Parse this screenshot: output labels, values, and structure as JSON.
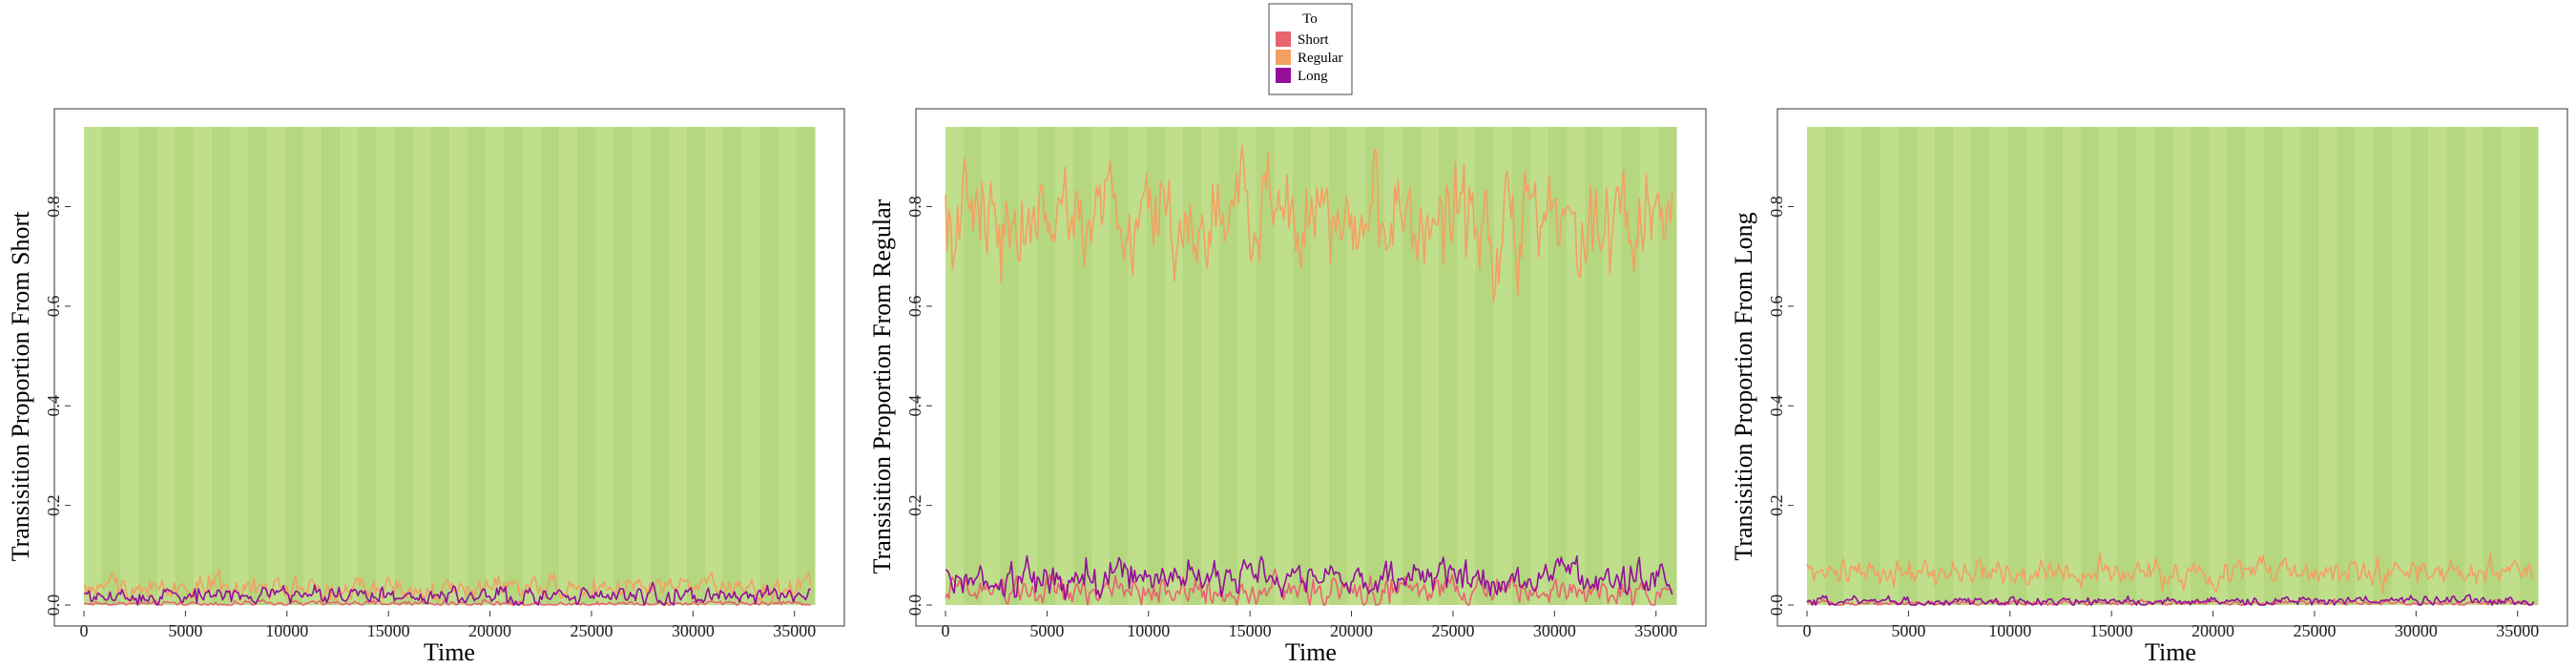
{
  "legend": {
    "title": "To",
    "items": [
      {
        "label": "Short",
        "color": "#E8646F"
      },
      {
        "label": "Regular",
        "color": "#F3A062"
      },
      {
        "label": "Long",
        "color": "#950E9A"
      }
    ]
  },
  "band_colors": [
    "#BFDF8C",
    "#B5D77F"
  ],
  "chart_data": [
    {
      "type": "line",
      "xlabel": "Time",
      "ylabel": "Transisition Proportion From Short",
      "x_range": [
        0,
        36000
      ],
      "y_range": [
        0,
        0.96
      ],
      "x_ticks": [
        0,
        5000,
        10000,
        15000,
        20000,
        25000,
        30000,
        35000
      ],
      "y_ticks": [
        "0.0",
        "0.2",
        "0.4",
        "0.6",
        "0.8"
      ],
      "series": [
        {
          "name": "Short",
          "color": "#E8646F",
          "mean": 0.003,
          "noise": 0.004,
          "min": 0,
          "max": 0.03
        },
        {
          "name": "Regular",
          "color": "#F3A062",
          "mean": 0.035,
          "noise": 0.018,
          "min": 0,
          "max": 0.095
        },
        {
          "name": "Long",
          "color": "#950E9A",
          "mean": 0.018,
          "noise": 0.013,
          "min": 0,
          "max": 0.095
        }
      ]
    },
    {
      "type": "line",
      "xlabel": "Time",
      "ylabel": "Transisition Proportion From Regular",
      "x_range": [
        0,
        36000
      ],
      "y_range": [
        0,
        0.96
      ],
      "x_ticks": [
        0,
        5000,
        10000,
        15000,
        20000,
        25000,
        30000,
        35000
      ],
      "y_ticks": [
        "0.0",
        "0.2",
        "0.4",
        "0.6",
        "0.8"
      ],
      "series": [
        {
          "name": "Short",
          "color": "#E8646F",
          "mean": 0.028,
          "noise": 0.02,
          "min": 0,
          "max": 0.09
        },
        {
          "name": "Regular",
          "color": "#F3A062",
          "mean": 0.78,
          "noise": 0.075,
          "min": 0.45,
          "max": 0.95
        },
        {
          "name": "Long",
          "color": "#950E9A",
          "mean": 0.055,
          "noise": 0.025,
          "min": 0,
          "max": 0.14
        }
      ]
    },
    {
      "type": "line",
      "xlabel": "Time",
      "ylabel": "Transisition Proportion From Long",
      "x_range": [
        0,
        36000
      ],
      "y_range": [
        0,
        0.96
      ],
      "x_ticks": [
        0,
        5000,
        10000,
        15000,
        20000,
        25000,
        30000,
        35000
      ],
      "y_ticks": [
        "0.0",
        "0.2",
        "0.4",
        "0.6",
        "0.8"
      ],
      "series": [
        {
          "name": "Short",
          "color": "#E8646F",
          "mean": 0.004,
          "noise": 0.004,
          "min": 0,
          "max": 0.02
        },
        {
          "name": "Regular",
          "color": "#F3A062",
          "mean": 0.065,
          "noise": 0.02,
          "min": 0.02,
          "max": 0.14
        },
        {
          "name": "Long",
          "color": "#950E9A",
          "mean": 0.008,
          "noise": 0.007,
          "min": 0,
          "max": 0.04
        }
      ]
    }
  ]
}
